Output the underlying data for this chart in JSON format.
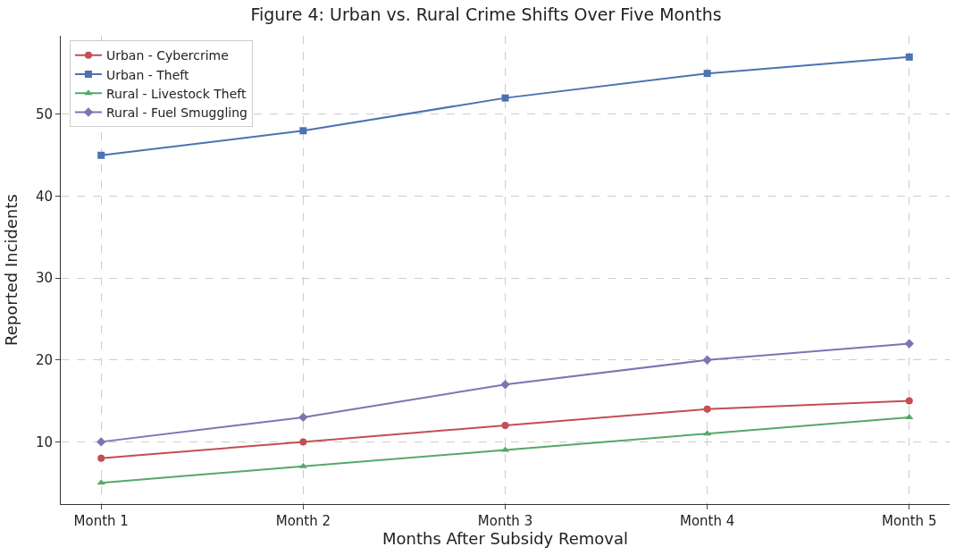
{
  "chart_data": {
    "type": "line",
    "title": "Figure 4: Urban vs. Rural Crime Shifts Over Five Months",
    "xlabel": "Months After Subsidy Removal",
    "ylabel": "Reported Incidents",
    "categories": [
      "Month 1",
      "Month 2",
      "Month 3",
      "Month 4",
      "Month 5"
    ],
    "series": [
      {
        "name": "Urban - Cybercrime",
        "color": "#c44e52",
        "marker": "circle",
        "values": [
          8,
          10,
          12,
          14,
          15
        ]
      },
      {
        "name": "Urban - Theft",
        "color": "#4c72b0",
        "marker": "square",
        "values": [
          45,
          48,
          52,
          55,
          57
        ]
      },
      {
        "name": "Rural - Livestock Theft",
        "color": "#55a868",
        "marker": "triangle",
        "values": [
          5,
          7,
          9,
          11,
          13
        ]
      },
      {
        "name": "Rural - Fuel Smuggling",
        "color": "#8172b2",
        "marker": "diamond",
        "values": [
          10,
          13,
          17,
          20,
          22
        ]
      }
    ],
    "ylim": [
      2.4,
      59.6
    ],
    "yticks": [
      10,
      20,
      30,
      40,
      50
    ],
    "grid": true,
    "legend": "top left",
    "line_style": "solid"
  }
}
